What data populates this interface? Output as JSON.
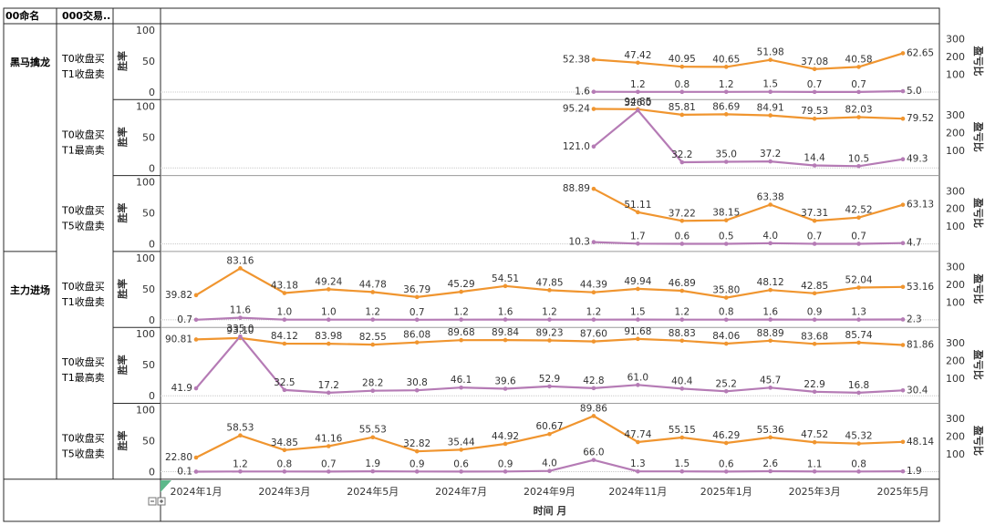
{
  "header": {
    "col1": "00命名",
    "col2": "000交易.."
  },
  "axis": {
    "left_title": "胜率",
    "right_title": "盈亏比",
    "x_title": "时间 月",
    "left_ticks": [
      "0",
      "50",
      "100"
    ],
    "right_ticks": [
      "100",
      "200",
      "300"
    ]
  },
  "colors": {
    "win_rate": "#f0952f",
    "profit_ratio": "#b57bb5",
    "grid": "#c8c8c8"
  },
  "chart_data": {
    "type": "line",
    "x": [
      "2024年1月",
      "2024年2月",
      "2024年3月",
      "2024年4月",
      "2024年5月",
      "2024年6月",
      "2024年7月",
      "2024年8月",
      "2024年9月",
      "2024年10月",
      "2024年11月",
      "2024年12月",
      "2025年1月",
      "2025年2月",
      "2025年3月",
      "2025年4月",
      "2025年5月"
    ],
    "x_tick_labels": [
      "2024年1月",
      "2024年3月",
      "2024年5月",
      "2024年7月",
      "2024年9月",
      "2024年11月",
      "2025年1月",
      "2025年3月",
      "2025年5月"
    ],
    "xlabel": "时间 月",
    "left_ylim": [
      0,
      100
    ],
    "right_ylim": [
      0,
      350
    ],
    "panels": [
      {
        "group": "黑马擒龙",
        "strategy": [
          "T0收盘买",
          "T1收盘卖"
        ],
        "win_rate": [
          null,
          null,
          null,
          null,
          null,
          null,
          null,
          null,
          null,
          52.38,
          47.42,
          40.95,
          40.65,
          51.98,
          37.08,
          40.58,
          62.65
        ],
        "win_rate_labels": [
          null,
          null,
          null,
          null,
          null,
          null,
          null,
          null,
          null,
          "52.38",
          "47.42",
          "40.95",
          "40.65",
          "51.98",
          "37.08",
          "40.58",
          "62.65"
        ],
        "profit_ratio": [
          null,
          null,
          null,
          null,
          null,
          null,
          null,
          null,
          null,
          1.6,
          1.2,
          0.8,
          1.2,
          1.5,
          0.7,
          0.7,
          5.0
        ],
        "profit_ratio_labels": [
          null,
          null,
          null,
          null,
          null,
          null,
          null,
          null,
          null,
          "1.6",
          "1.2",
          "0.8",
          "1.2",
          "1.5",
          "0.7",
          "0.7",
          "5.0"
        ]
      },
      {
        "group": "",
        "strategy": [
          "T0收盘买",
          "T1最高卖"
        ],
        "win_rate": [
          null,
          null,
          null,
          null,
          null,
          null,
          null,
          null,
          null,
          95.24,
          94.85,
          85.81,
          86.69,
          84.91,
          79.53,
          82.03,
          79.52
        ],
        "win_rate_labels": [
          null,
          null,
          null,
          null,
          null,
          null,
          null,
          null,
          null,
          "95.24",
          "94.85",
          "85.81",
          "86.69",
          "84.91",
          "79.53",
          "82.03",
          "79.52"
        ],
        "profit_ratio": [
          null,
          null,
          null,
          null,
          null,
          null,
          null,
          null,
          null,
          121.0,
          326.0,
          32.2,
          35.0,
          37.2,
          14.4,
          10.5,
          49.3
        ],
        "profit_ratio_labels": [
          null,
          null,
          null,
          null,
          null,
          null,
          null,
          null,
          null,
          "121.0",
          "326.0",
          "32.2",
          "35.0",
          "37.2",
          "14.4",
          "10.5",
          "49.3"
        ]
      },
      {
        "group": "",
        "strategy": [
          "T0收盘买",
          "T5收盘卖"
        ],
        "win_rate": [
          null,
          null,
          null,
          null,
          null,
          null,
          null,
          null,
          null,
          88.89,
          51.11,
          37.22,
          38.15,
          63.38,
          37.31,
          42.52,
          63.13
        ],
        "win_rate_labels": [
          null,
          null,
          null,
          null,
          null,
          null,
          null,
          null,
          null,
          "88.89",
          "51.11",
          "37.22",
          "38.15",
          "63.38",
          "37.31",
          "42.52",
          "63.13"
        ],
        "profit_ratio": [
          null,
          null,
          null,
          null,
          null,
          null,
          null,
          null,
          null,
          10.3,
          1.7,
          0.6,
          0.5,
          4.0,
          0.7,
          0.7,
          4.7
        ],
        "profit_ratio_labels": [
          null,
          null,
          null,
          null,
          null,
          null,
          null,
          null,
          null,
          "10.3",
          "1.7",
          "0.6",
          "0.5",
          "4.0",
          "0.7",
          "0.7",
          "4.7"
        ]
      },
      {
        "group": "主力进场",
        "strategy": [
          "T0收盘买",
          "T1收盘卖"
        ],
        "win_rate": [
          39.82,
          83.16,
          43.18,
          49.24,
          44.78,
          36.79,
          45.29,
          54.51,
          47.85,
          44.39,
          49.94,
          46.89,
          35.8,
          48.12,
          42.85,
          52.04,
          53.16
        ],
        "win_rate_labels": [
          "39.82",
          "83.16",
          "43.18",
          "49.24",
          "44.78",
          "36.79",
          "45.29",
          "54.51",
          "47.85",
          "44.39",
          "49.94",
          "46.89",
          "35.80",
          "48.12",
          "42.85",
          "52.04",
          "53.16"
        ],
        "profit_ratio": [
          0.7,
          11.6,
          1.0,
          1.0,
          1.2,
          0.7,
          1.2,
          1.6,
          1.2,
          1.2,
          1.5,
          1.2,
          0.8,
          1.6,
          0.9,
          1.3,
          2.3
        ],
        "profit_ratio_labels": [
          "0.7",
          "11.6",
          "1.0",
          "1.0",
          "1.2",
          "0.7",
          "1.2",
          "1.6",
          "1.2",
          "1.2",
          "1.5",
          "1.2",
          "0.8",
          "1.6",
          "0.9",
          "1.3",
          "2.3"
        ]
      },
      {
        "group": "",
        "strategy": [
          "T0收盘买",
          "T1最高卖"
        ],
        "win_rate": [
          90.81,
          93.1,
          84.12,
          83.98,
          82.55,
          86.08,
          89.68,
          89.84,
          89.23,
          87.6,
          91.68,
          88.83,
          84.06,
          88.89,
          83.68,
          85.74,
          81.86
        ],
        "win_rate_labels": [
          "90.81",
          "93.10",
          "84.12",
          "83.98",
          "82.55",
          "86.08",
          "89.68",
          "89.84",
          "89.23",
          "87.60",
          "91.68",
          "88.83",
          "84.06",
          "88.89",
          "83.68",
          "85.74",
          "81.86"
        ],
        "profit_ratio": [
          41.9,
          335.0,
          32.5,
          17.2,
          28.2,
          30.8,
          46.1,
          39.6,
          52.9,
          42.8,
          61.0,
          40.4,
          25.2,
          45.7,
          22.9,
          16.8,
          30.4
        ],
        "profit_ratio_labels": [
          "41.9",
          "335.0",
          "32.5",
          "17.2",
          "28.2",
          "30.8",
          "46.1",
          "39.6",
          "52.9",
          "42.8",
          "61.0",
          "40.4",
          "25.2",
          "45.7",
          "22.9",
          "16.8",
          "30.4"
        ]
      },
      {
        "group": "",
        "strategy": [
          "T0收盘买",
          "T5收盘卖"
        ],
        "win_rate": [
          22.8,
          58.53,
          34.85,
          41.16,
          55.53,
          32.82,
          35.44,
          44.92,
          60.67,
          89.86,
          47.74,
          55.15,
          46.29,
          55.36,
          47.52,
          45.32,
          48.14
        ],
        "win_rate_labels": [
          "22.80",
          "58.53",
          "34.85",
          "41.16",
          "55.53",
          "32.82",
          "35.44",
          "44.92",
          "60.67",
          "89.86",
          "47.74",
          "55.15",
          "46.29",
          "55.36",
          "47.52",
          "45.32",
          "48.14"
        ],
        "profit_ratio": [
          0.1,
          1.2,
          0.8,
          0.7,
          1.9,
          0.9,
          0.6,
          0.9,
          4.0,
          66.0,
          1.3,
          1.5,
          0.6,
          2.6,
          1.1,
          0.8,
          1.9
        ],
        "profit_ratio_labels": [
          "0.1",
          "1.2",
          "0.8",
          "0.7",
          "1.9",
          "0.9",
          "0.6",
          "0.9",
          "4.0",
          "66.0",
          "1.3",
          "1.5",
          "0.6",
          "2.6",
          "1.1",
          "0.8",
          "1.9"
        ]
      }
    ]
  }
}
